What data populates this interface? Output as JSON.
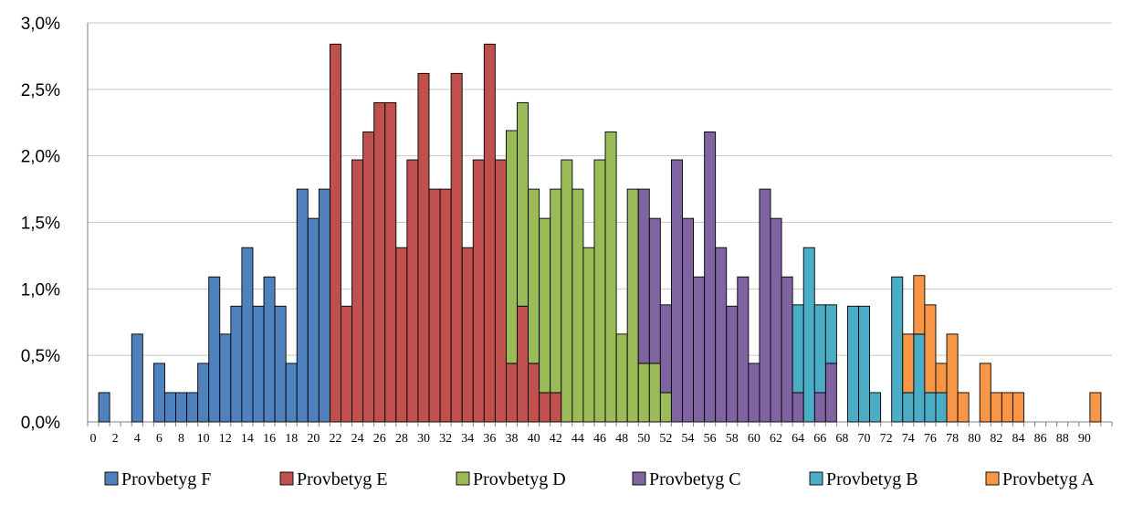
{
  "chart_data": {
    "type": "bar",
    "stacked": true,
    "grid": true,
    "legend_position": "bottom",
    "ylim": [
      0,
      3.0
    ],
    "yticks": [
      "0,0%",
      "0,5%",
      "1,0%",
      "1,5%",
      "2,0%",
      "2,5%",
      "3,0%"
    ],
    "xlim": [
      0,
      92
    ],
    "xtick_labels": [
      "0",
      "2",
      "4",
      "6",
      "8",
      "10",
      "12",
      "14",
      "16",
      "18",
      "20",
      "22",
      "24",
      "26",
      "28",
      "30",
      "32",
      "34",
      "36",
      "38",
      "40",
      "42",
      "44",
      "46",
      "48",
      "50",
      "52",
      "54",
      "56",
      "58",
      "60",
      "62",
      "64",
      "66",
      "68",
      "70",
      "72",
      "74",
      "76",
      "78",
      "80",
      "82",
      "84",
      "86",
      "88",
      "90"
    ],
    "series": [
      {
        "name": "Provbetyg F",
        "color": "#4f81bd",
        "values": {
          "1": 0.22,
          "4": 0.66,
          "6": 0.44,
          "7": 0.22,
          "8": 0.22,
          "9": 0.22,
          "10": 0.44,
          "11": 1.09,
          "12": 0.66,
          "13": 0.87,
          "14": 1.31,
          "15": 0.87,
          "16": 1.09,
          "17": 0.87,
          "18": 0.44,
          "19": 1.75,
          "20": 1.53,
          "21": 1.75
        }
      },
      {
        "name": "Provbetyg E",
        "color": "#c0504d",
        "values": {
          "22": 2.84,
          "23": 0.87,
          "24": 1.97,
          "25": 2.18,
          "26": 2.4,
          "27": 2.4,
          "28": 1.31,
          "29": 1.97,
          "30": 2.62,
          "31": 1.75,
          "32": 1.75,
          "33": 2.62,
          "34": 1.31,
          "35": 1.97,
          "36": 2.84,
          "37": 1.97,
          "38": 0.44,
          "39": 0.87,
          "40": 0.44,
          "41": 0.22,
          "42": 0.22
        }
      },
      {
        "name": "Provbetyg D",
        "color": "#9bbb59",
        "values": {
          "38": 1.75,
          "39": 1.53,
          "40": 1.31,
          "41": 1.31,
          "42": 1.53,
          "43": 1.97,
          "44": 1.75,
          "45": 1.31,
          "46": 1.97,
          "47": 2.18,
          "48": 0.66,
          "49": 1.75,
          "50": 0.44,
          "51": 0.44,
          "52": 0.22
        }
      },
      {
        "name": "Provbetyg C",
        "color": "#8064a2",
        "values": {
          "49": 0.0,
          "50": 1.31,
          "51": 1.09,
          "52": 0.66,
          "53": 1.97,
          "54": 1.53,
          "55": 1.09,
          "56": 2.18,
          "57": 1.31,
          "58": 0.87,
          "59": 1.09,
          "60": 0.44,
          "61": 1.75,
          "62": 1.53,
          "63": 1.09,
          "64": 0.22,
          "66": 0.22,
          "67": 0.44
        }
      },
      {
        "name": "Provbetyg B",
        "color": "#4bacc6",
        "values": {
          "64": 0.66,
          "65": 1.31,
          "66": 0.66,
          "67": 0.44,
          "69": 0.87,
          "70": 0.87,
          "71": 0.22,
          "73": 1.09,
          "74": 0.22,
          "75": 0.66,
          "76": 0.22,
          "77": 0.22
        }
      },
      {
        "name": "Provbetyg A",
        "color": "#f79646",
        "values": {
          "74": 0.44,
          "75": 0.44,
          "76": 0.66,
          "77": 0.22,
          "78": 0.66,
          "79": 0.22,
          "81": 0.44,
          "82": 0.22,
          "83": 0.22,
          "84": 0.22,
          "91": 0.22
        }
      }
    ]
  }
}
